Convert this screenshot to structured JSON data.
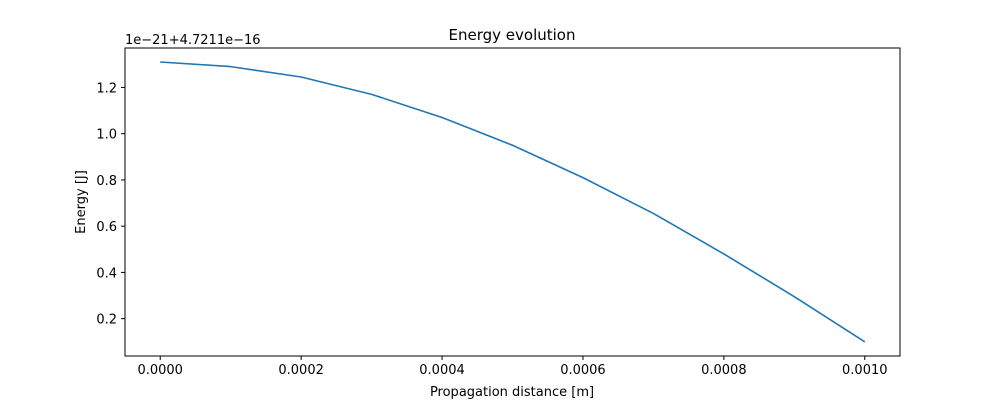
{
  "chart_data": {
    "type": "line",
    "title": "Energy evolution",
    "xlabel": "Propagation distance [m]",
    "ylabel": "Energy [J]",
    "offset_text": "1e−21+4.7211e−16",
    "xlim": [
      -5e-05,
      0.00105
    ],
    "ylim": [
      0.0385,
      1.3705
    ],
    "grid": false,
    "x_ticks": [
      0.0,
      0.0002,
      0.0004,
      0.0006,
      0.0008,
      0.001
    ],
    "x_tick_labels": [
      "0.0000",
      "0.0002",
      "0.0004",
      "0.0006",
      "0.0008",
      "0.0010"
    ],
    "y_ticks": [
      0.2,
      0.4,
      0.6,
      0.8,
      1.0,
      1.2
    ],
    "y_tick_labels": [
      "0.2",
      "0.4",
      "0.6",
      "0.8",
      "1.0",
      "1.2"
    ],
    "series": [
      {
        "color": "#1f77b4",
        "x": [
          0.0,
          0.0001,
          0.0002,
          0.0003,
          0.0004,
          0.0005,
          0.0006,
          0.0007,
          0.0008,
          0.0009,
          0.001
        ],
        "y": [
          1.31,
          1.29,
          1.245,
          1.17,
          1.07,
          0.95,
          0.81,
          0.655,
          0.48,
          0.295,
          0.1
        ]
      }
    ]
  }
}
